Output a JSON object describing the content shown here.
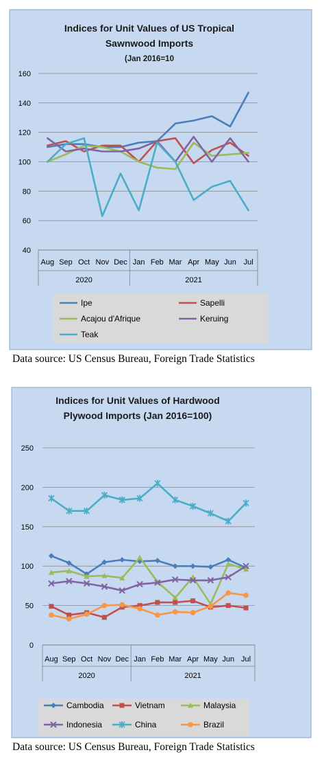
{
  "chart_data": [
    {
      "type": "line",
      "title": "Indices for Unit Values of US Tropical Sawnwood Imports",
      "subtitle": "(Jan 2016=10",
      "x": [
        "Aug",
        "Sep",
        "Oct",
        "Nov",
        "Dec",
        "Jan",
        "Feb",
        "Mar",
        "Apr",
        "May",
        "Jun",
        "Jul"
      ],
      "year_groups": [
        {
          "label": "2020",
          "count": 5
        },
        {
          "label": "2021",
          "count": 7
        }
      ],
      "yticks": [
        40,
        60,
        80,
        100,
        120,
        140,
        160
      ],
      "ylim": [
        40,
        160
      ],
      "grid": true,
      "legend": "bottom",
      "series": [
        {
          "name": "Ipe",
          "color": "#4a7ebb",
          "values": [
            110,
            112,
            112,
            110,
            110,
            113,
            114,
            126,
            128,
            131,
            124,
            147
          ]
        },
        {
          "name": "Sapelli",
          "color": "#c0504d",
          "values": [
            111,
            114,
            107,
            111,
            111,
            100,
            114,
            116,
            99,
            108,
            113,
            104
          ]
        },
        {
          "name": "Acajou d'Afrique",
          "color": "#9bbb59",
          "values": [
            100,
            105,
            111,
            110,
            107,
            100,
            96,
            95,
            113,
            104,
            105,
            106
          ]
        },
        {
          "name": "Keruing",
          "color": "#8064a2",
          "values": [
            116,
            107,
            109,
            107,
            107,
            109,
            114,
            100,
            117,
            100,
            116,
            100
          ]
        },
        {
          "name": "Teak",
          "color": "#4bacc6",
          "values": [
            100,
            112,
            116,
            63,
            92,
            67,
            113,
            100,
            74,
            83,
            87,
            67
          ]
        }
      ]
    },
    {
      "type": "line",
      "title": "Indices for Unit Values of Hardwood Plywood Imports (Jan 2016=100)",
      "x": [
        "Aug",
        "Sep",
        "Oct",
        "Nov",
        "Dec",
        "Jan",
        "Feb",
        "Mar",
        "Apr",
        "May",
        "Jun",
        "Jul"
      ],
      "year_groups": [
        {
          "label": "2020",
          "count": 5
        },
        {
          "label": "2021",
          "count": 7
        }
      ],
      "yticks": [
        0,
        50,
        100,
        150,
        200,
        250
      ],
      "ylim": [
        0,
        250
      ],
      "grid": true,
      "legend": "bottom",
      "series": [
        {
          "name": "Cambodia",
          "color": "#4a7ebb",
          "marker": "diamond",
          "values": [
            113,
            104,
            90,
            105,
            108,
            106,
            107,
            100,
            100,
            99,
            108,
            98
          ]
        },
        {
          "name": "Vietnam",
          "color": "#c0504d",
          "marker": "square",
          "values": [
            49,
            38,
            41,
            35,
            48,
            50,
            54,
            54,
            56,
            48,
            50,
            47
          ]
        },
        {
          "name": "Malaysia",
          "color": "#9bbb59",
          "marker": "triangle",
          "values": [
            92,
            94,
            87,
            88,
            85,
            111,
            80,
            60,
            86,
            52,
            103,
            96
          ]
        },
        {
          "name": "Indonesia",
          "color": "#8064a2",
          "marker": "x",
          "values": [
            78,
            81,
            78,
            74,
            69,
            77,
            79,
            83,
            82,
            82,
            86,
            100
          ]
        },
        {
          "name": "China",
          "color": "#4bacc6",
          "marker": "star",
          "values": [
            186,
            170,
            170,
            190,
            184,
            186,
            205,
            184,
            176,
            167,
            157,
            180
          ]
        },
        {
          "name": "Brazil",
          "color": "#f79646",
          "marker": "circle",
          "values": [
            38,
            33,
            39,
            50,
            51,
            46,
            38,
            42,
            41,
            49,
            66,
            63
          ]
        }
      ]
    }
  ],
  "source_1": "Data source: US Census Bureau, Foreign Trade Statistics",
  "source_2": "Data source: US Census Bureau, Foreign Trade Statistics"
}
